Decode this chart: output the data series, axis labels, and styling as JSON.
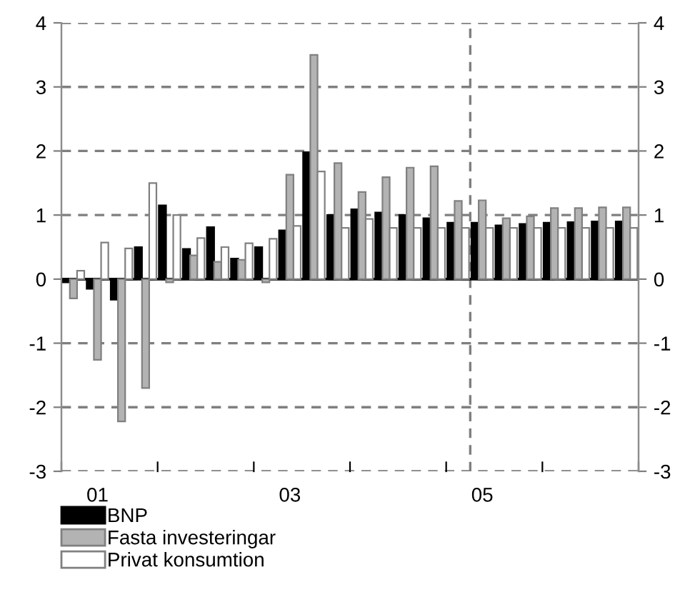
{
  "chart_data": {
    "type": "bar",
    "categories": [
      null,
      "01",
      null,
      null,
      null,
      null,
      null,
      null,
      null,
      "03",
      null,
      null,
      null,
      null,
      null,
      null,
      null,
      "05",
      null,
      null,
      null,
      null,
      null,
      null
    ],
    "series": [
      {
        "name": "BNP",
        "color": "#000000",
        "values": [
          -0.05,
          -0.15,
          -0.32,
          0.5,
          1.15,
          0.47,
          0.81,
          0.32,
          0.5,
          0.76,
          1.98,
          1.0,
          1.09,
          1.04,
          1.0,
          0.95,
          0.88,
          0.88,
          0.84,
          0.86,
          0.88,
          0.89,
          0.9,
          0.9
        ]
      },
      {
        "name": "Fasta investeringar",
        "color": "#b3b3b3",
        "values": [
          -0.3,
          -1.26,
          -2.22,
          -1.7,
          -0.05,
          0.37,
          0.27,
          0.3,
          -0.05,
          1.63,
          3.5,
          1.81,
          1.36,
          1.59,
          1.74,
          1.76,
          1.22,
          1.23,
          0.95,
          0.98,
          1.11,
          1.11,
          1.12,
          1.12
        ]
      },
      {
        "name": "Privat konsumtion",
        "color": "#ffffff",
        "values": [
          0.13,
          0.57,
          0.48,
          1.5,
          1.0,
          0.64,
          0.5,
          0.56,
          0.63,
          0.83,
          1.68,
          0.8,
          0.94,
          0.8,
          0.8,
          0.8,
          0.8,
          0.8,
          0.8,
          0.8,
          0.8,
          0.8,
          0.8,
          0.8
        ]
      }
    ],
    "ylim": [
      -3,
      4
    ],
    "yticks": [
      -3,
      -2,
      -1,
      0,
      1,
      2,
      3,
      4
    ],
    "y2lim": [
      -3,
      4
    ],
    "y2ticks": [
      -3,
      -2,
      -1,
      0,
      1,
      2,
      3,
      4
    ],
    "ref_lines": [
      {
        "axis": "y",
        "value": 0,
        "color": "#000000",
        "line_style": "solid"
      }
    ],
    "grid": "y",
    "legend": "bottom left"
  }
}
